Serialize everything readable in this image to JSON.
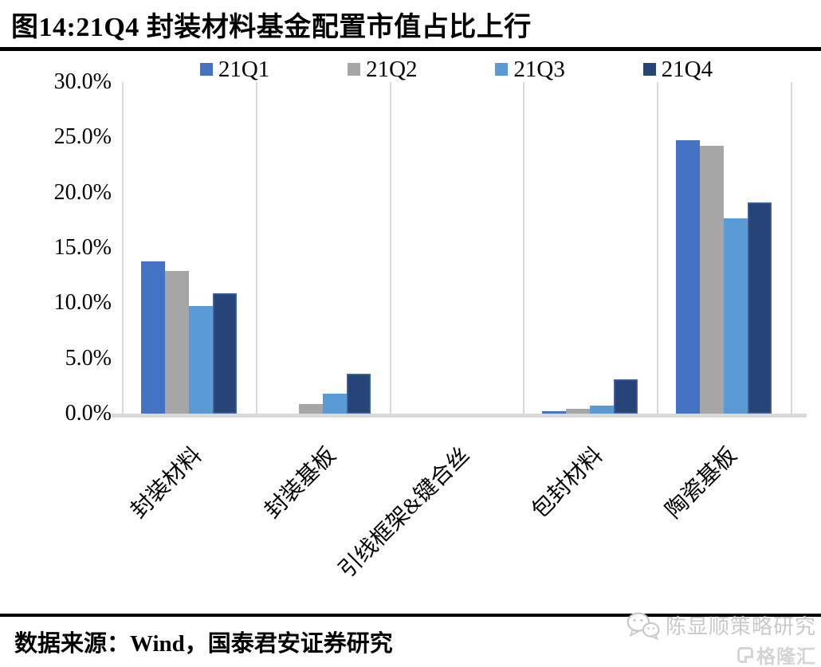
{
  "title": {
    "text": "图14:21Q4 封装材料基金配置市值占比上行"
  },
  "chart_data": {
    "type": "bar",
    "title": "图14:21Q4 封装材料基金配置市值占比上行",
    "categories": [
      "封装材料",
      "封装基板",
      "引线框架&键合丝",
      "包封材料",
      "陶瓷基板"
    ],
    "series": [
      {
        "name": "21Q1",
        "color": "#4472C4",
        "values": [
          13.8,
          0.0,
          0.0,
          0.2,
          24.7
        ]
      },
      {
        "name": "21Q2",
        "color": "#A6A6A6",
        "values": [
          12.9,
          0.9,
          0.0,
          0.4,
          24.2
        ]
      },
      {
        "name": "21Q3",
        "color": "#5B9BD5",
        "values": [
          9.7,
          1.8,
          0.0,
          0.7,
          17.7
        ]
      },
      {
        "name": "21Q4",
        "color": "#264478",
        "border": "#44679F",
        "values": [
          10.9,
          3.6,
          0.0,
          3.1,
          19.1
        ]
      }
    ],
    "xlabel": "",
    "ylabel": "",
    "ylim": [
      0,
      30
    ],
    "y_ticks": [
      "30.0%",
      "25.0%",
      "20.0%",
      "15.0%",
      "10.0%",
      "5.0%",
      "0.0%"
    ],
    "legend_position": "top",
    "grid": false,
    "axis_line_color": "#D9D9D9"
  },
  "footer": {
    "source_text": "数据来源：Wind，国泰君安证券研究"
  },
  "watermark": {
    "account_name": "陈显顺策略研究",
    "platform_logo_text": "格隆汇"
  }
}
